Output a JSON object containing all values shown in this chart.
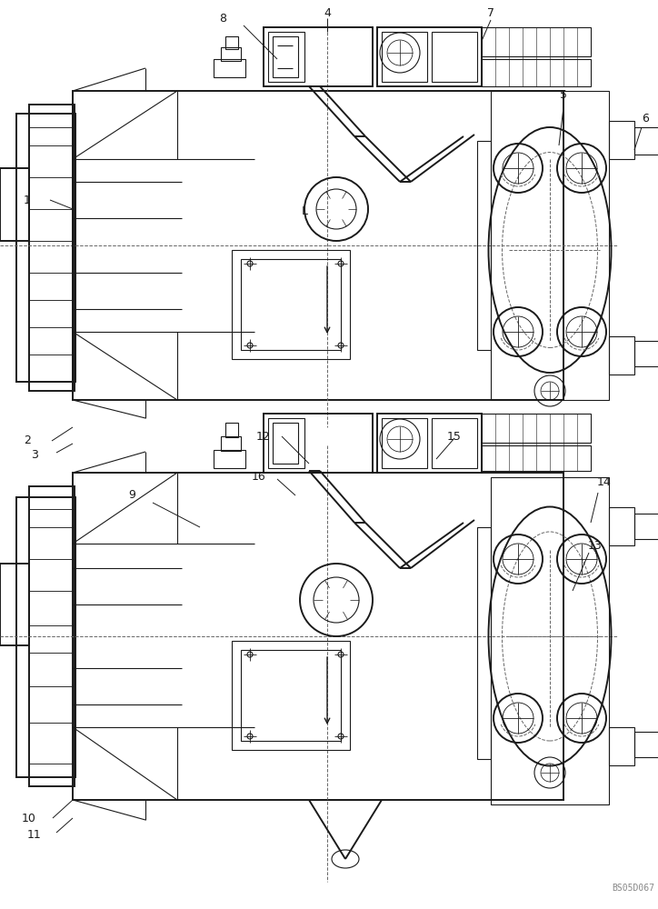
{
  "bg_color": "#ffffff",
  "line_color": "#1a1a1a",
  "dashed_color": "#666666",
  "label_color": "#1a1a1a",
  "watermark": "BS05D067",
  "figsize": [
    7.24,
    10.0
  ],
  "dpi": 100,
  "lw_main": 1.4,
  "lw_thin": 0.8,
  "lw_dash": 0.7
}
